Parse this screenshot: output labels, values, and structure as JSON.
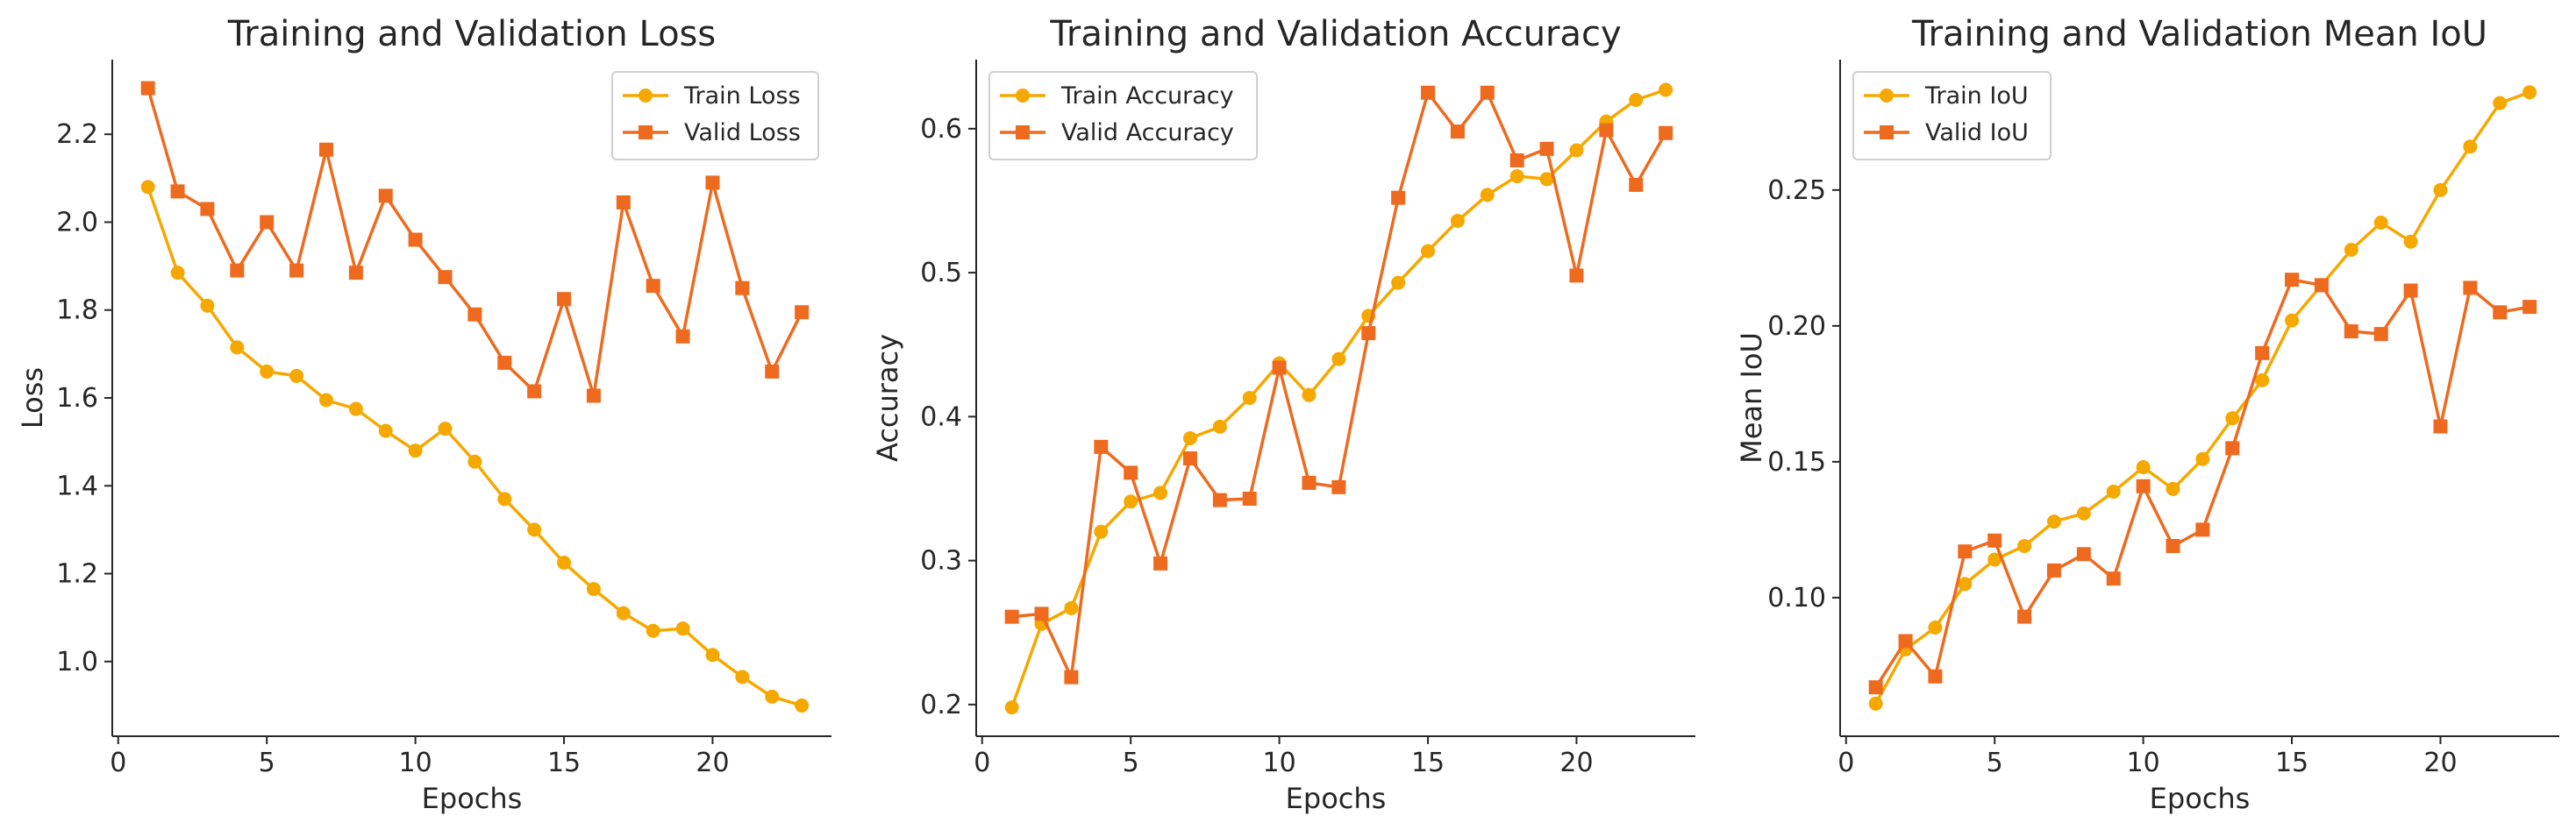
{
  "colors": {
    "train": "#F5A800",
    "valid": "#EE6A1F",
    "axis": "#262626"
  },
  "chart_data": [
    {
      "type": "line",
      "title": "Training and Validation Loss",
      "xlabel": "Epochs",
      "ylabel": "Loss",
      "xlim": [
        -0.2,
        24.0
      ],
      "ylim": [
        0.83,
        2.37
      ],
      "xticks": [
        0,
        5,
        10,
        15,
        20
      ],
      "yticks": [
        1.0,
        1.2,
        1.4,
        1.6,
        1.8,
        2.0,
        2.2
      ],
      "ytick_labels": [
        "1.0",
        "1.2",
        "1.4",
        "1.6",
        "1.8",
        "2.0",
        "2.2"
      ],
      "grid": false,
      "legend": "top-right",
      "x": [
        1,
        2,
        3,
        4,
        5,
        6,
        7,
        8,
        9,
        10,
        11,
        12,
        13,
        14,
        15,
        16,
        17,
        18,
        19,
        20,
        21,
        22,
        23
      ],
      "series": [
        {
          "name": "Train Loss",
          "marker": "circle",
          "values": [
            2.08,
            1.885,
            1.81,
            1.715,
            1.66,
            1.65,
            1.595,
            1.575,
            1.525,
            1.48,
            1.53,
            1.455,
            1.37,
            1.3,
            1.225,
            1.165,
            1.11,
            1.07,
            1.075,
            1.015,
            0.965,
            0.92,
            0.9
          ]
        },
        {
          "name": "Valid Loss",
          "marker": "square",
          "values": [
            2.305,
            2.07,
            2.03,
            1.89,
            2.0,
            1.89,
            2.165,
            1.885,
            2.06,
            1.96,
            1.875,
            1.79,
            1.68,
            1.615,
            1.825,
            1.605,
            2.045,
            1.855,
            1.74,
            2.09,
            1.85,
            1.66,
            1.795
          ]
        }
      ]
    },
    {
      "type": "line",
      "title": "Training and Validation Accuracy",
      "xlabel": "Epochs",
      "ylabel": "Accuracy",
      "xlim": [
        -0.2,
        24.0
      ],
      "ylim": [
        0.178,
        0.648
      ],
      "xticks": [
        0,
        5,
        10,
        15,
        20
      ],
      "yticks": [
        0.2,
        0.3,
        0.4,
        0.5,
        0.6
      ],
      "ytick_labels": [
        "0.2",
        "0.3",
        "0.4",
        "0.5",
        "0.6"
      ],
      "grid": false,
      "legend": "top-left",
      "x": [
        1,
        2,
        3,
        4,
        5,
        6,
        7,
        8,
        9,
        10,
        11,
        12,
        13,
        14,
        15,
        16,
        17,
        18,
        19,
        20,
        21,
        22,
        23
      ],
      "series": [
        {
          "name": "Train Accuracy",
          "marker": "circle",
          "values": [
            0.198,
            0.256,
            0.267,
            0.32,
            0.341,
            0.347,
            0.385,
            0.393,
            0.413,
            0.437,
            0.415,
            0.44,
            0.47,
            0.493,
            0.515,
            0.536,
            0.554,
            0.567,
            0.565,
            0.585,
            0.605,
            0.62,
            0.627
          ]
        },
        {
          "name": "Valid Accuracy",
          "marker": "square",
          "values": [
            0.261,
            0.263,
            0.219,
            0.379,
            0.361,
            0.298,
            0.371,
            0.342,
            0.343,
            0.434,
            0.354,
            0.351,
            0.458,
            0.552,
            0.625,
            0.598,
            0.625,
            0.578,
            0.586,
            0.498,
            0.599,
            0.561,
            0.597
          ]
        }
      ]
    },
    {
      "type": "line",
      "title": "Training and Validation Mean IoU",
      "xlabel": "Epochs",
      "ylabel": "Mean IoU",
      "xlim": [
        -0.2,
        24.0
      ],
      "ylim": [
        0.049,
        0.298
      ],
      "xticks": [
        0,
        5,
        10,
        15,
        20
      ],
      "yticks": [
        0.1,
        0.15,
        0.2,
        0.25
      ],
      "ytick_labels": [
        "0.10",
        "0.15",
        "0.20",
        "0.25"
      ],
      "grid": false,
      "legend": "top-left",
      "x": [
        1,
        2,
        3,
        4,
        5,
        6,
        7,
        8,
        9,
        10,
        11,
        12,
        13,
        14,
        15,
        16,
        17,
        18,
        19,
        20,
        21,
        22,
        23
      ],
      "series": [
        {
          "name": "Train IoU",
          "marker": "circle",
          "values": [
            0.061,
            0.081,
            0.089,
            0.105,
            0.114,
            0.119,
            0.128,
            0.131,
            0.139,
            0.148,
            0.14,
            0.151,
            0.166,
            0.18,
            0.202,
            0.215,
            0.228,
            0.238,
            0.231,
            0.25,
            0.266,
            0.282,
            0.286
          ]
        },
        {
          "name": "Valid IoU",
          "marker": "square",
          "values": [
            0.067,
            0.084,
            0.071,
            0.117,
            0.121,
            0.093,
            0.11,
            0.116,
            0.107,
            0.141,
            0.119,
            0.125,
            0.155,
            0.19,
            0.217,
            0.215,
            0.198,
            0.197,
            0.213,
            0.163,
            0.214,
            0.205,
            0.207
          ]
        }
      ]
    }
  ]
}
